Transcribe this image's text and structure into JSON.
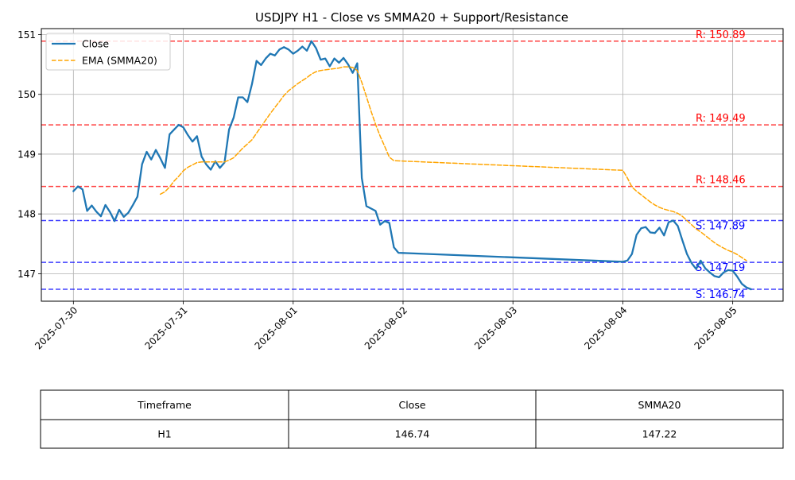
{
  "chart_data": {
    "type": "line",
    "title": "USDJPY H1 - Close vs SMMA20 + Support/Resistance",
    "xlabel": "",
    "ylabel": "",
    "ylim": [
      146.54,
      151.1
    ],
    "xlim": [
      "2025-07-29 17:00",
      "2025-08-05 11:00"
    ],
    "grid": true,
    "legend_position": "top-left",
    "x_tick_labels": [
      "2025-07-30",
      "2025-07-31",
      "2025-08-01",
      "2025-08-02",
      "2025-08-03",
      "2025-08-04",
      "2025-08-05"
    ],
    "y_tick_labels": [
      "147",
      "148",
      "149",
      "150",
      "151"
    ],
    "series": [
      {
        "name": "Close",
        "color": "#1f77b4",
        "style": "solid",
        "points": [
          [
            "2025-07-30 00:00",
            148.38
          ],
          [
            "2025-07-30 01:00",
            148.46
          ],
          [
            "2025-07-30 02:00",
            148.41
          ],
          [
            "2025-07-30 03:00",
            148.05
          ],
          [
            "2025-07-30 04:00",
            148.14
          ],
          [
            "2025-07-30 05:00",
            148.04
          ],
          [
            "2025-07-30 06:00",
            147.96
          ],
          [
            "2025-07-30 07:00",
            148.15
          ],
          [
            "2025-07-30 08:00",
            148.03
          ],
          [
            "2025-07-30 09:00",
            147.88
          ],
          [
            "2025-07-30 10:00",
            148.07
          ],
          [
            "2025-07-30 11:00",
            147.95
          ],
          [
            "2025-07-30 12:00",
            148.02
          ],
          [
            "2025-07-30 13:00",
            148.15
          ],
          [
            "2025-07-30 14:00",
            148.29
          ],
          [
            "2025-07-30 15:00",
            148.83
          ],
          [
            "2025-07-30 16:00",
            149.04
          ],
          [
            "2025-07-30 17:00",
            148.91
          ],
          [
            "2025-07-30 18:00",
            149.07
          ],
          [
            "2025-07-30 19:00",
            148.93
          ],
          [
            "2025-07-30 20:00",
            148.77
          ],
          [
            "2025-07-30 21:00",
            149.33
          ],
          [
            "2025-07-30 22:00",
            149.41
          ],
          [
            "2025-07-30 23:00",
            149.49
          ],
          [
            "2025-07-31 00:00",
            149.45
          ],
          [
            "2025-07-31 01:00",
            149.32
          ],
          [
            "2025-07-31 02:00",
            149.21
          ],
          [
            "2025-07-31 03:00",
            149.3
          ],
          [
            "2025-07-31 04:00",
            148.96
          ],
          [
            "2025-07-31 05:00",
            148.83
          ],
          [
            "2025-07-31 06:00",
            148.74
          ],
          [
            "2025-07-31 07:00",
            148.88
          ],
          [
            "2025-07-31 08:00",
            148.77
          ],
          [
            "2025-07-31 09:00",
            148.86
          ],
          [
            "2025-07-31 10:00",
            149.41
          ],
          [
            "2025-07-31 11:00",
            149.61
          ],
          [
            "2025-07-31 12:00",
            149.95
          ],
          [
            "2025-07-31 13:00",
            149.95
          ],
          [
            "2025-07-31 14:00",
            149.87
          ],
          [
            "2025-07-31 15:00",
            150.17
          ],
          [
            "2025-07-31 16:00",
            150.56
          ],
          [
            "2025-07-31 17:00",
            150.49
          ],
          [
            "2025-07-31 18:00",
            150.6
          ],
          [
            "2025-07-31 19:00",
            150.68
          ],
          [
            "2025-07-31 20:00",
            150.65
          ],
          [
            "2025-07-31 21:00",
            150.75
          ],
          [
            "2025-07-31 22:00",
            150.79
          ],
          [
            "2025-07-31 23:00",
            150.75
          ],
          [
            "2025-08-01 00:00",
            150.68
          ],
          [
            "2025-08-01 01:00",
            150.73
          ],
          [
            "2025-08-01 02:00",
            150.8
          ],
          [
            "2025-08-01 03:00",
            150.73
          ],
          [
            "2025-08-01 04:00",
            150.89
          ],
          [
            "2025-08-01 05:00",
            150.77
          ],
          [
            "2025-08-01 06:00",
            150.58
          ],
          [
            "2025-08-01 07:00",
            150.6
          ],
          [
            "2025-08-01 08:00",
            150.47
          ],
          [
            "2025-08-01 09:00",
            150.6
          ],
          [
            "2025-08-01 10:00",
            150.53
          ],
          [
            "2025-08-01 11:00",
            150.61
          ],
          [
            "2025-08-01 12:00",
            150.5
          ],
          [
            "2025-08-01 13:00",
            150.36
          ],
          [
            "2025-08-01 14:00",
            150.52
          ],
          [
            "2025-08-01 15:00",
            148.6
          ],
          [
            "2025-08-01 16:00",
            148.13
          ],
          [
            "2025-08-01 17:00",
            148.09
          ],
          [
            "2025-08-01 18:00",
            148.05
          ],
          [
            "2025-08-01 19:00",
            147.82
          ],
          [
            "2025-08-01 20:00",
            147.88
          ],
          [
            "2025-08-01 21:00",
            147.85
          ],
          [
            "2025-08-01 22:00",
            147.44
          ],
          [
            "2025-08-01 23:00",
            147.35
          ],
          [
            "2025-08-04 00:00",
            147.2
          ],
          [
            "2025-08-04 01:00",
            147.22
          ],
          [
            "2025-08-04 02:00",
            147.33
          ],
          [
            "2025-08-04 03:00",
            147.65
          ],
          [
            "2025-08-04 04:00",
            147.76
          ],
          [
            "2025-08-04 05:00",
            147.78
          ],
          [
            "2025-08-04 06:00",
            147.69
          ],
          [
            "2025-08-04 07:00",
            147.68
          ],
          [
            "2025-08-04 08:00",
            147.77
          ],
          [
            "2025-08-04 09:00",
            147.64
          ],
          [
            "2025-08-04 10:00",
            147.86
          ],
          [
            "2025-08-04 11:00",
            147.89
          ],
          [
            "2025-08-04 12:00",
            147.8
          ],
          [
            "2025-08-04 13:00",
            147.56
          ],
          [
            "2025-08-04 14:00",
            147.33
          ],
          [
            "2025-08-04 15:00",
            147.18
          ],
          [
            "2025-08-04 16:00",
            147.08
          ],
          [
            "2025-08-04 17:00",
            147.22
          ],
          [
            "2025-08-04 18:00",
            147.09
          ],
          [
            "2025-08-04 19:00",
            147.02
          ],
          [
            "2025-08-04 20:00",
            146.96
          ],
          [
            "2025-08-04 21:00",
            146.94
          ],
          [
            "2025-08-04 22:00",
            147.02
          ],
          [
            "2025-08-04 23:00",
            147.06
          ],
          [
            "2025-08-05 00:00",
            147.05
          ],
          [
            "2025-08-05 01:00",
            146.95
          ],
          [
            "2025-08-05 02:00",
            146.83
          ],
          [
            "2025-08-05 03:00",
            146.77
          ],
          [
            "2025-08-05 04:00",
            146.74
          ]
        ]
      },
      {
        "name": "EMA (SMMA20)",
        "color": "#ffa500",
        "style": "dashed",
        "points": [
          [
            "2025-07-30 19:00",
            148.33
          ],
          [
            "2025-07-30 20:00",
            148.37
          ],
          [
            "2025-07-30 21:00",
            148.45
          ],
          [
            "2025-07-30 22:00",
            148.55
          ],
          [
            "2025-07-30 23:00",
            148.63
          ],
          [
            "2025-07-31 00:00",
            148.72
          ],
          [
            "2025-07-31 01:00",
            148.78
          ],
          [
            "2025-07-31 02:00",
            148.82
          ],
          [
            "2025-07-31 03:00",
            148.86
          ],
          [
            "2025-07-31 04:00",
            148.87
          ],
          [
            "2025-07-31 05:00",
            148.87
          ],
          [
            "2025-07-31 06:00",
            148.87
          ],
          [
            "2025-07-31 07:00",
            148.87
          ],
          [
            "2025-07-31 08:00",
            148.87
          ],
          [
            "2025-07-31 09:00",
            148.87
          ],
          [
            "2025-07-31 10:00",
            148.9
          ],
          [
            "2025-07-31 11:00",
            148.94
          ],
          [
            "2025-07-31 12:00",
            149.02
          ],
          [
            "2025-07-31 13:00",
            149.1
          ],
          [
            "2025-07-31 14:00",
            149.17
          ],
          [
            "2025-07-31 15:00",
            149.24
          ],
          [
            "2025-07-31 16:00",
            149.35
          ],
          [
            "2025-07-31 17:00",
            149.46
          ],
          [
            "2025-07-31 18:00",
            149.57
          ],
          [
            "2025-07-31 19:00",
            149.68
          ],
          [
            "2025-07-31 20:00",
            149.78
          ],
          [
            "2025-07-31 21:00",
            149.88
          ],
          [
            "2025-07-31 22:00",
            149.98
          ],
          [
            "2025-07-31 23:00",
            150.06
          ],
          [
            "2025-08-01 00:00",
            150.12
          ],
          [
            "2025-08-01 01:00",
            150.18
          ],
          [
            "2025-08-01 02:00",
            150.23
          ],
          [
            "2025-08-01 03:00",
            150.28
          ],
          [
            "2025-08-01 04:00",
            150.34
          ],
          [
            "2025-08-01 05:00",
            150.38
          ],
          [
            "2025-08-01 06:00",
            150.4
          ],
          [
            "2025-08-01 07:00",
            150.41
          ],
          [
            "2025-08-01 08:00",
            150.42
          ],
          [
            "2025-08-01 09:00",
            150.43
          ],
          [
            "2025-08-01 10:00",
            150.44
          ],
          [
            "2025-08-01 11:00",
            150.46
          ],
          [
            "2025-08-01 12:00",
            150.46
          ],
          [
            "2025-08-01 13:00",
            150.45
          ],
          [
            "2025-08-01 14:00",
            150.4
          ],
          [
            "2025-08-01 15:00",
            150.2
          ],
          [
            "2025-08-01 16:00",
            149.96
          ],
          [
            "2025-08-01 17:00",
            149.72
          ],
          [
            "2025-08-01 18:00",
            149.5
          ],
          [
            "2025-08-01 19:00",
            149.3
          ],
          [
            "2025-08-01 20:00",
            149.13
          ],
          [
            "2025-08-01 21:00",
            148.95
          ],
          [
            "2025-08-01 22:00",
            148.89
          ],
          [
            "2025-08-04 00:00",
            148.73
          ],
          [
            "2025-08-04 01:00",
            148.6
          ],
          [
            "2025-08-04 02:00",
            148.45
          ],
          [
            "2025-08-04 03:00",
            148.38
          ],
          [
            "2025-08-04 04:00",
            148.32
          ],
          [
            "2025-08-04 05:00",
            148.26
          ],
          [
            "2025-08-04 06:00",
            148.2
          ],
          [
            "2025-08-04 07:00",
            148.15
          ],
          [
            "2025-08-04 08:00",
            148.11
          ],
          [
            "2025-08-04 09:00",
            148.08
          ],
          [
            "2025-08-04 10:00",
            148.06
          ],
          [
            "2025-08-04 11:00",
            148.04
          ],
          [
            "2025-08-04 12:00",
            148.01
          ],
          [
            "2025-08-04 13:00",
            147.96
          ],
          [
            "2025-08-04 14:00",
            147.89
          ],
          [
            "2025-08-04 15:00",
            147.82
          ],
          [
            "2025-08-04 16:00",
            147.75
          ],
          [
            "2025-08-04 17:00",
            147.7
          ],
          [
            "2025-08-04 18:00",
            147.64
          ],
          [
            "2025-08-04 19:00",
            147.58
          ],
          [
            "2025-08-04 20:00",
            147.52
          ],
          [
            "2025-08-04 21:00",
            147.47
          ],
          [
            "2025-08-04 22:00",
            147.43
          ],
          [
            "2025-08-04 23:00",
            147.39
          ],
          [
            "2025-08-05 00:00",
            147.36
          ],
          [
            "2025-08-05 01:00",
            147.32
          ],
          [
            "2025-08-05 02:00",
            147.27
          ],
          [
            "2025-08-05 03:00",
            147.22
          ]
        ]
      }
    ],
    "levels": [
      {
        "kind": "resistance",
        "value": 150.89,
        "label": "R: 150.89",
        "color": "#ff0000"
      },
      {
        "kind": "resistance",
        "value": 149.49,
        "label": "R: 149.49",
        "color": "#ff0000"
      },
      {
        "kind": "resistance",
        "value": 148.46,
        "label": "R: 148.46",
        "color": "#ff0000"
      },
      {
        "kind": "support",
        "value": 147.89,
        "label": "S: 147.89",
        "color": "#0000ff"
      },
      {
        "kind": "support",
        "value": 147.19,
        "label": "S: 147.19",
        "color": "#0000ff"
      },
      {
        "kind": "support",
        "value": 146.74,
        "label": "S: 146.74",
        "color": "#0000ff"
      }
    ]
  },
  "table": {
    "headers": [
      "Timeframe",
      "Close",
      "SMMA20"
    ],
    "rows": [
      [
        "H1",
        "146.74",
        "147.22"
      ]
    ]
  }
}
